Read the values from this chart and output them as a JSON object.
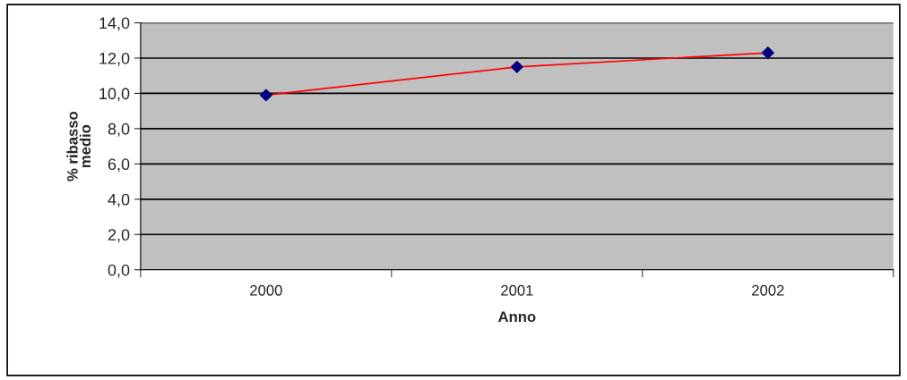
{
  "chart_data": {
    "type": "line",
    "xlabel": "Anno",
    "ylabel": "% ribasso\nmedio",
    "categories": [
      "2000",
      "2001",
      "2002"
    ],
    "series": [
      {
        "color": "#ff0000",
        "colors": [
          "#000080",
          "#000080",
          "#000080"
        ],
        "values": [
          9.9,
          11.5,
          12.3
        ]
      }
    ],
    "ylim": [
      0,
      14
    ],
    "yticks": [
      {
        "value": 0,
        "label": "0,0"
      },
      {
        "value": 2,
        "label": "2,0"
      },
      {
        "value": 4,
        "label": "4,0"
      },
      {
        "value": 6,
        "label": "6,0"
      },
      {
        "value": 8,
        "label": "8,0"
      },
      {
        "value": 10,
        "label": "10,0"
      },
      {
        "value": 12,
        "label": "12,0"
      },
      {
        "value": 14,
        "label": "14,0"
      }
    ],
    "grid": "y",
    "marker": "diamond",
    "legend": false
  }
}
